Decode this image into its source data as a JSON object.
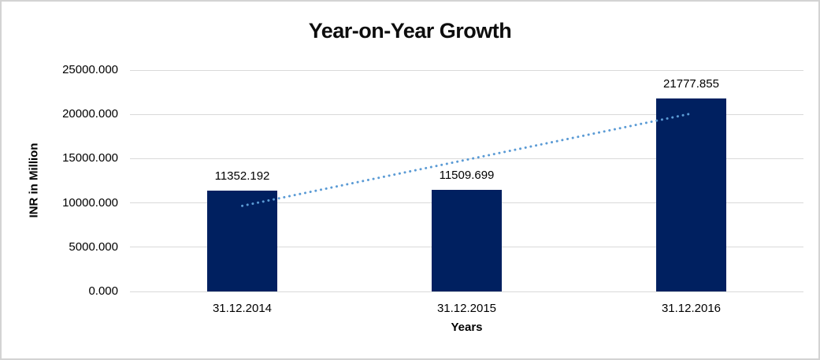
{
  "chart_data": {
    "type": "bar",
    "title": "Year-on-Year Growth",
    "xlabel": "Years",
    "ylabel": "INR in Million",
    "categories": [
      "31.12.2014",
      "31.12.2015",
      "31.12.2016"
    ],
    "values": [
      11352.192,
      11509.699,
      21777.855
    ],
    "data_labels": [
      "11352.192",
      "11509.699",
      "21777.855"
    ],
    "ylim": [
      0,
      25000
    ],
    "y_ticks": [
      0,
      5000,
      10000,
      15000,
      20000,
      25000
    ],
    "y_tick_labels": [
      "0.000",
      "5000.000",
      "10000.000",
      "15000.000",
      "20000.000",
      "25000.000"
    ],
    "grid": true,
    "legend": false,
    "bar_color": "#002060",
    "trendline": {
      "type": "linear",
      "style": "dotted",
      "color": "#5B9BD5"
    },
    "gridline_color": "#d9d9d9"
  }
}
